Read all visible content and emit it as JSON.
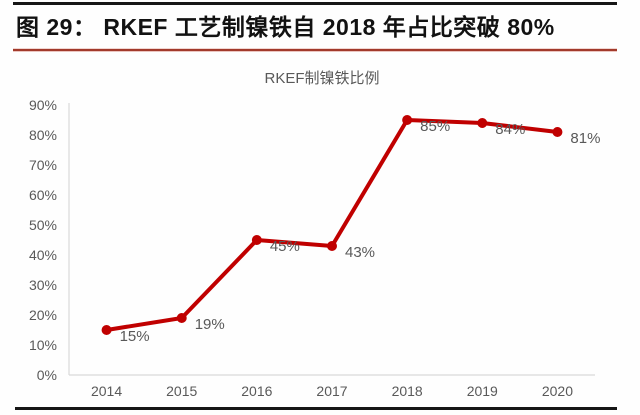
{
  "page": {
    "figure_title": "图 29： RKEF 工艺制镍铁自 2018 年占比突破 80%"
  },
  "chart_data": {
    "type": "line",
    "title": "RKEF制镍铁比例",
    "categories": [
      "2014",
      "2015",
      "2016",
      "2017",
      "2018",
      "2019",
      "2020"
    ],
    "values": [
      15,
      19,
      45,
      43,
      85,
      84,
      81
    ],
    "data_labels": [
      "15%",
      "19%",
      "45%",
      "43%",
      "85%",
      "84%",
      "81%"
    ],
    "y_ticks": [
      "0%",
      "10%",
      "20%",
      "30%",
      "40%",
      "50%",
      "60%",
      "70%",
      "80%",
      "90%"
    ],
    "xlabel": "",
    "ylabel": "",
    "ylim": [
      0,
      90
    ],
    "grid": false,
    "legend": "none",
    "line_color": "#c00000",
    "label_color": "#595959",
    "axis_color": "#d9d9d9"
  }
}
